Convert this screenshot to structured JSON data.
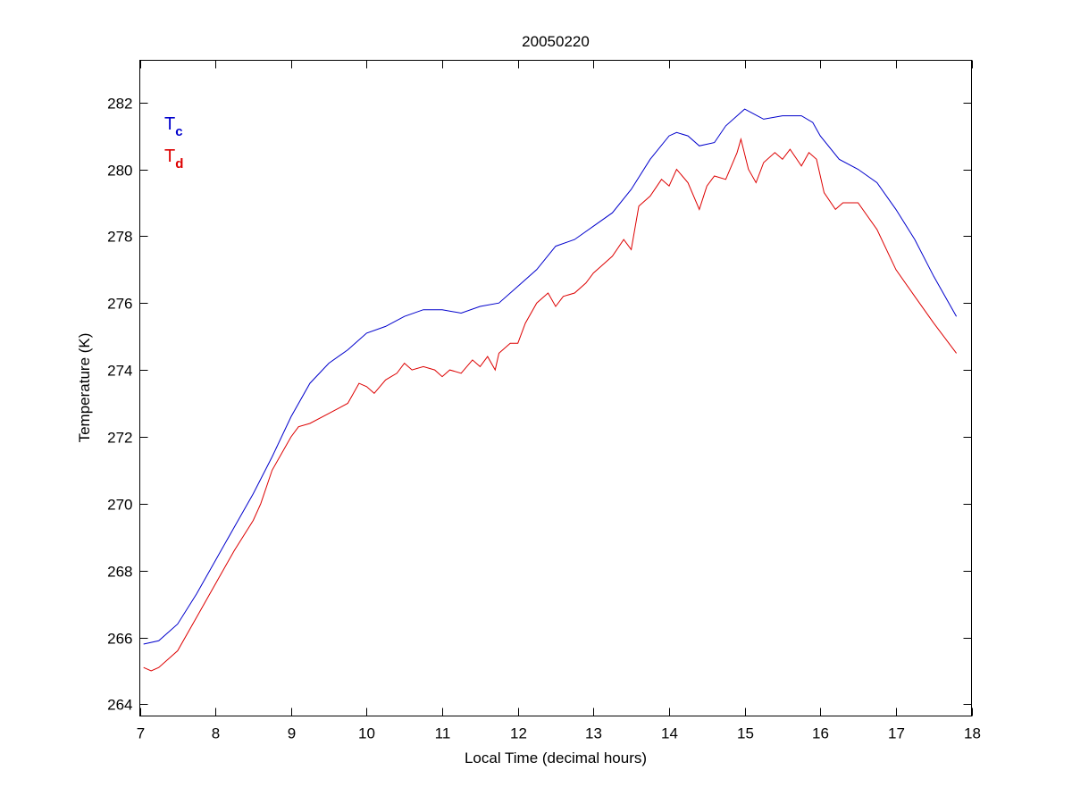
{
  "chart_data": {
    "type": "line",
    "title": "20050220",
    "xlabel": "Local Time (decimal hours)",
    "ylabel": "Temperature (K)",
    "xlim": [
      7,
      18
    ],
    "ylim": [
      263.65,
      283.26
    ],
    "xticks": [
      7,
      8,
      9,
      10,
      11,
      12,
      13,
      14,
      15,
      16,
      17,
      18
    ],
    "yticks": [
      264,
      266,
      268,
      270,
      272,
      274,
      276,
      278,
      280,
      282
    ],
    "grid": false,
    "legend_position": "top-left",
    "series": [
      {
        "name": "Tc",
        "label_main": "T",
        "label_sub": "c",
        "color": "#0000cc",
        "x": [
          7.05,
          7.25,
          7.5,
          7.75,
          8.0,
          8.25,
          8.5,
          8.75,
          9.0,
          9.25,
          9.5,
          9.75,
          10.0,
          10.25,
          10.5,
          10.75,
          11.0,
          11.25,
          11.5,
          11.75,
          12.0,
          12.25,
          12.5,
          12.75,
          13.0,
          13.25,
          13.5,
          13.75,
          14.0,
          14.1,
          14.25,
          14.4,
          14.6,
          14.75,
          15.0,
          15.25,
          15.5,
          15.75,
          15.9,
          16.0,
          16.25,
          16.5,
          16.75,
          17.0,
          17.25,
          17.5,
          17.8
        ],
        "y": [
          265.8,
          265.9,
          266.4,
          267.3,
          268.3,
          269.3,
          270.3,
          271.4,
          272.6,
          273.6,
          274.2,
          274.6,
          275.1,
          275.3,
          275.6,
          275.8,
          275.8,
          275.7,
          275.9,
          276.0,
          276.5,
          277.0,
          277.7,
          277.9,
          278.3,
          278.7,
          279.4,
          280.3,
          281.0,
          281.1,
          281.0,
          280.7,
          280.8,
          281.3,
          281.8,
          281.5,
          281.6,
          281.6,
          281.4,
          281.0,
          280.3,
          280.0,
          279.6,
          278.8,
          277.9,
          276.8,
          275.6
        ]
      },
      {
        "name": "Td",
        "label_main": "T",
        "label_sub": "d",
        "color": "#dd0000",
        "x": [
          7.05,
          7.15,
          7.25,
          7.5,
          7.75,
          8.0,
          8.25,
          8.5,
          8.6,
          8.75,
          9.0,
          9.1,
          9.25,
          9.5,
          9.75,
          9.9,
          10.0,
          10.1,
          10.25,
          10.4,
          10.5,
          10.6,
          10.75,
          10.9,
          11.0,
          11.1,
          11.25,
          11.4,
          11.5,
          11.6,
          11.7,
          11.75,
          11.9,
          12.0,
          12.1,
          12.25,
          12.4,
          12.5,
          12.6,
          12.75,
          12.9,
          13.0,
          13.1,
          13.25,
          13.4,
          13.5,
          13.6,
          13.75,
          13.9,
          14.0,
          14.1,
          14.25,
          14.4,
          14.5,
          14.6,
          14.75,
          14.9,
          14.95,
          15.05,
          15.15,
          15.25,
          15.4,
          15.5,
          15.6,
          15.75,
          15.85,
          15.95,
          16.05,
          16.2,
          16.3,
          16.5,
          16.75,
          17.0,
          17.25,
          17.5,
          17.8
        ],
        "y": [
          265.1,
          265.0,
          265.1,
          265.6,
          266.6,
          267.6,
          268.6,
          269.5,
          270.0,
          271.0,
          272.0,
          272.3,
          272.4,
          272.7,
          273.0,
          273.6,
          273.5,
          273.3,
          273.7,
          273.9,
          274.2,
          274.0,
          274.1,
          274.0,
          273.8,
          274.0,
          273.9,
          274.3,
          274.1,
          274.4,
          274.0,
          274.5,
          274.8,
          274.8,
          275.4,
          276.0,
          276.3,
          275.9,
          276.2,
          276.3,
          276.6,
          276.9,
          277.1,
          277.4,
          277.9,
          277.6,
          278.9,
          279.2,
          279.7,
          279.5,
          280.0,
          279.6,
          278.8,
          279.5,
          279.8,
          279.7,
          280.5,
          280.9,
          280.0,
          279.6,
          280.2,
          280.5,
          280.3,
          280.6,
          280.1,
          280.5,
          280.3,
          279.3,
          278.8,
          279.0,
          279.0,
          278.2,
          277.0,
          276.2,
          275.4,
          274.5
        ]
      }
    ]
  }
}
